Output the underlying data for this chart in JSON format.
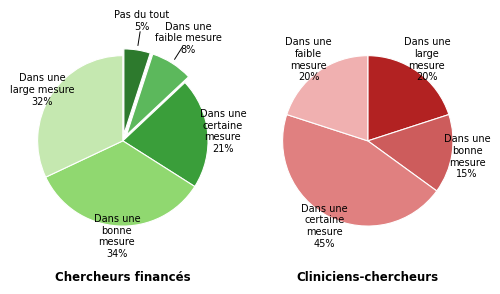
{
  "chart1_title": "Chercheurs financés",
  "chart1_labels": [
    "Pas du tout\n5%",
    "Dans une\nfaible mesure\n8%",
    "Dans une\ncertaine\nmesure\n21%",
    "Dans une\nbonne\nmesure\n34%",
    "Dans une\nlarge mesure\n32%"
  ],
  "chart1_values": [
    5,
    8,
    21,
    34,
    32
  ],
  "chart1_colors": [
    "#2d7a2d",
    "#5cb85c",
    "#3a9e3a",
    "#90d870",
    "#c5e8b0"
  ],
  "chart1_explode": [
    0.08,
    0.08,
    0,
    0,
    0
  ],
  "chart2_title": "Cliniciens-chercheurs",
  "chart2_labels": [
    "Dans une\nlarge\nmesure\n20%",
    "Dans une\nbonne\nmesure\n15%",
    "Dans une\ncertaine\nmesure\n45%",
    "Dans une\nfaible\nmesure\n20%"
  ],
  "chart2_values": [
    20,
    15,
    45,
    20
  ],
  "chart2_colors": [
    "#b22222",
    "#cd5c5c",
    "#e08080",
    "#f0b0b0"
  ],
  "chart2_explode": [
    0,
    0,
    0,
    0
  ],
  "background_color": "#ffffff",
  "title_fontsize": 8.5,
  "label_fontsize": 7.0
}
